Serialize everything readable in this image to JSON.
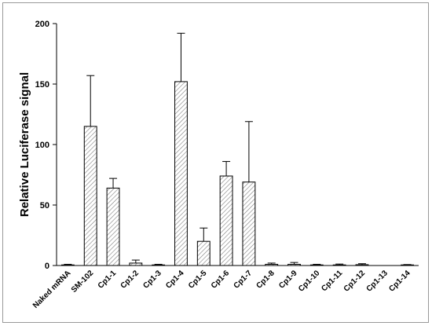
{
  "chart_data": {
    "type": "bar",
    "y_label": "Relative Luciferase signal",
    "categories": [
      "Naked mRNA",
      "SM-102",
      "Cp1-1",
      "Cp1-2",
      "Cp1-3",
      "Cp1-4",
      "Cp1-5",
      "Cp1-6",
      "Cp1-7",
      "Cp1-8",
      "Cp1-9",
      "Cp1-10",
      "Cp1-11",
      "Cp1-12",
      "Cp1-13",
      "Cp1-14"
    ],
    "values": [
      0.5,
      115,
      64,
      2,
      0.5,
      152,
      20,
      74,
      69,
      1,
      1,
      0.5,
      0.5,
      0.7,
      0,
      0.5
    ],
    "errors": [
      0.5,
      42,
      8,
      2.5,
      0.5,
      40,
      11,
      12,
      50,
      1,
      1.5,
      0.5,
      0.7,
      0.8,
      0,
      0.3
    ],
    "color": "#808080",
    "ylim": [
      0,
      200
    ],
    "yticks": [
      0,
      50,
      100,
      150,
      200
    ]
  }
}
